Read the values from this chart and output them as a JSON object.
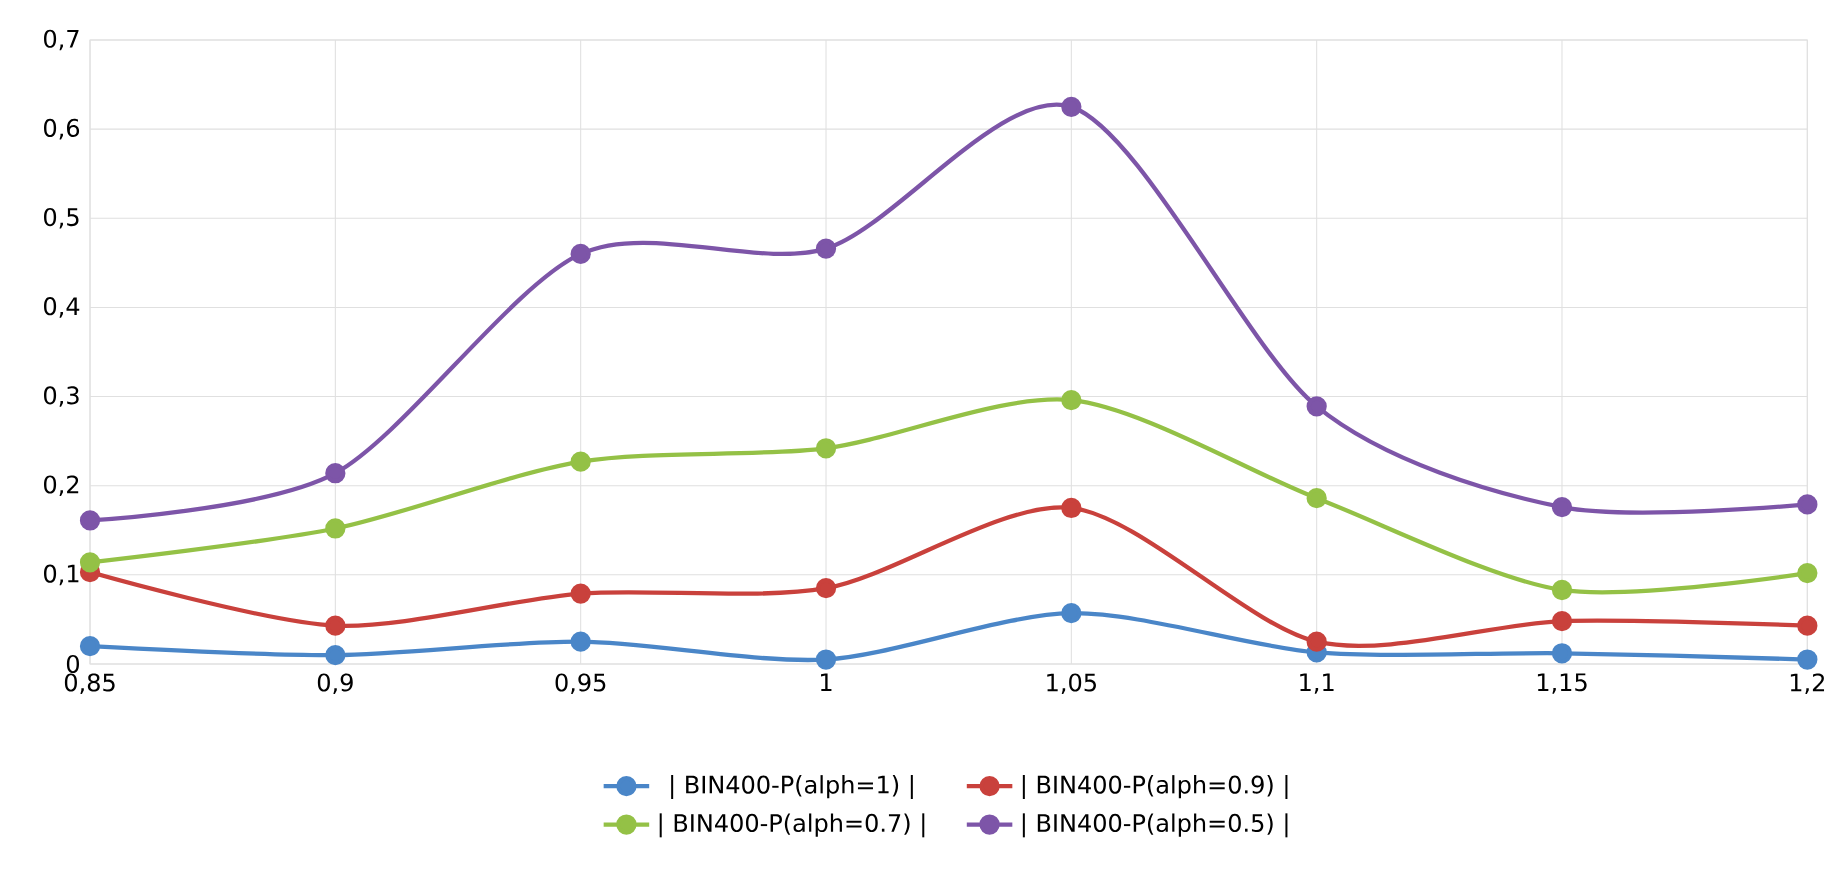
{
  "chart_data": {
    "type": "line",
    "x": [
      0.85,
      0.9,
      0.95,
      1,
      1.05,
      1.1,
      1.15,
      1.2
    ],
    "series": [
      {
        "name": "| BIN400-P(alph=1) |",
        "color": "#4a86c8",
        "values": [
          0.02,
          0.01,
          0.025,
          0.005,
          0.057,
          0.013,
          0.012,
          0.005
        ]
      },
      {
        "name": "| BIN400-P(alph=0.9) |",
        "color": "#c9413c",
        "values": [
          0.103,
          0.043,
          0.079,
          0.085,
          0.175,
          0.025,
          0.048,
          0.043
        ]
      },
      {
        "name": "| BIN400-P(alph=0.7) |",
        "color": "#94c146",
        "values": [
          0.114,
          0.152,
          0.227,
          0.242,
          0.296,
          0.186,
          0.083,
          0.102
        ]
      },
      {
        "name": "| BIN400-P(alph=0.5) |",
        "color": "#7d55a8",
        "values": [
          0.161,
          0.214,
          0.46,
          0.466,
          0.625,
          0.289,
          0.176,
          0.179
        ]
      }
    ],
    "xlim": [
      0.85,
      1.2
    ],
    "xticks": [
      {
        "value": 0.85,
        "label": "0,85"
      },
      {
        "value": 0.9,
        "label": "0,9"
      },
      {
        "value": 0.95,
        "label": "0,95"
      },
      {
        "value": 1,
        "label": "1"
      },
      {
        "value": 1.05,
        "label": "1,05"
      },
      {
        "value": 1.1,
        "label": "1,1"
      },
      {
        "value": 1.15,
        "label": "1,15"
      },
      {
        "value": 1.2,
        "label": "1,2"
      }
    ],
    "ylim": [
      0,
      0.7
    ],
    "yticks": [
      0,
      {
        "value": 0.1,
        "label": "0,1"
      },
      {
        "value": 0.2,
        "label": "0,2"
      },
      {
        "value": 0.3,
        "label": "0,3"
      },
      {
        "value": 0.4,
        "label": "0,4"
      },
      {
        "value": 0.5,
        "label": "0,5"
      },
      {
        "value": 0.6,
        "label": "0,6"
      },
      {
        "value": 0.7,
        "label": "0,7"
      }
    ],
    "grid": true,
    "legend": "bottom",
    "marker": "circle",
    "line_style": "solid"
  }
}
